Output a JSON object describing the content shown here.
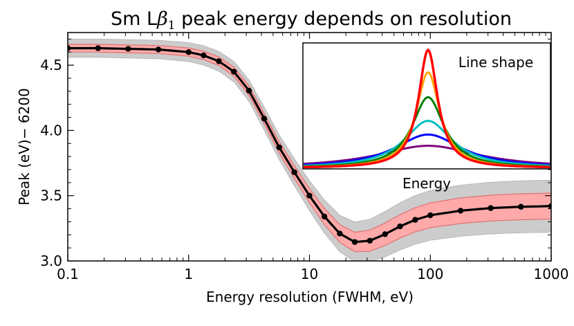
{
  "chart_data": [
    {
      "type": "line",
      "title_prefix": "Sm L",
      "title_greek": "β",
      "title_sub": "1",
      "title_suffix": " peak energy depends on resolution",
      "xlabel": "Energy resolution (FWHM, eV)",
      "ylabel": "Peak (eV)− 6200",
      "xscale": "log",
      "xlim": [
        0.1,
        1000
      ],
      "ylim": [
        3.0,
        4.75
      ],
      "xticks": [
        {
          "value": 0.1,
          "label": "0.1"
        },
        {
          "value": 1,
          "label": "1"
        },
        {
          "value": 10,
          "label": "10"
        },
        {
          "value": 100,
          "label": "100"
        },
        {
          "value": 1000,
          "label": "1000"
        }
      ],
      "yticks": [
        {
          "value": 3.0,
          "label": "3.0"
        },
        {
          "value": 3.5,
          "label": "3.5"
        },
        {
          "value": 4.0,
          "label": "4.0"
        },
        {
          "value": 4.5,
          "label": "4.5"
        }
      ],
      "series": [
        {
          "name": "peak",
          "color": "#000000",
          "x": [
            0.1,
            0.178,
            0.316,
            0.562,
            1.0,
            1.33,
            1.78,
            2.37,
            3.16,
            4.22,
            5.62,
            7.5,
            10,
            13.3,
            17.8,
            23.7,
            31.6,
            42.2,
            56.2,
            75,
            100,
            178,
            316,
            562,
            1000
          ],
          "y": [
            4.63,
            4.63,
            4.625,
            4.62,
            4.6,
            4.575,
            4.53,
            4.45,
            4.305,
            4.09,
            3.87,
            3.68,
            3.5,
            3.34,
            3.21,
            3.145,
            3.155,
            3.205,
            3.265,
            3.315,
            3.35,
            3.385,
            3.405,
            3.415,
            3.42
          ]
        }
      ],
      "bands": [
        {
          "name": "outer uncertainty (gray)",
          "color": "#cccccc",
          "halfwidth_low_res": 0.07,
          "halfwidth_high_res": 0.2
        },
        {
          "name": "inner uncertainty (red)",
          "color": "#ffaaaa",
          "halfwidth_low_res": 0.03,
          "halfwidth_high_res": 0.1
        }
      ]
    },
    {
      "type": "line",
      "title": "Line shape",
      "xlabel": "Energy",
      "series": [
        {
          "name": "widest",
          "color": "#7f007f",
          "peak_height": 0.18
        },
        {
          "name": "blue",
          "color": "#0000ff",
          "peak_height": 0.27
        },
        {
          "name": "cyan",
          "color": "#00bfbf",
          "peak_height": 0.38
        },
        {
          "name": "green",
          "color": "#008000",
          "peak_height": 0.57
        },
        {
          "name": "orange",
          "color": "#ffa500",
          "peak_height": 0.77
        },
        {
          "name": "red",
          "color": "#ff0000",
          "peak_height": 0.95
        }
      ]
    }
  ]
}
